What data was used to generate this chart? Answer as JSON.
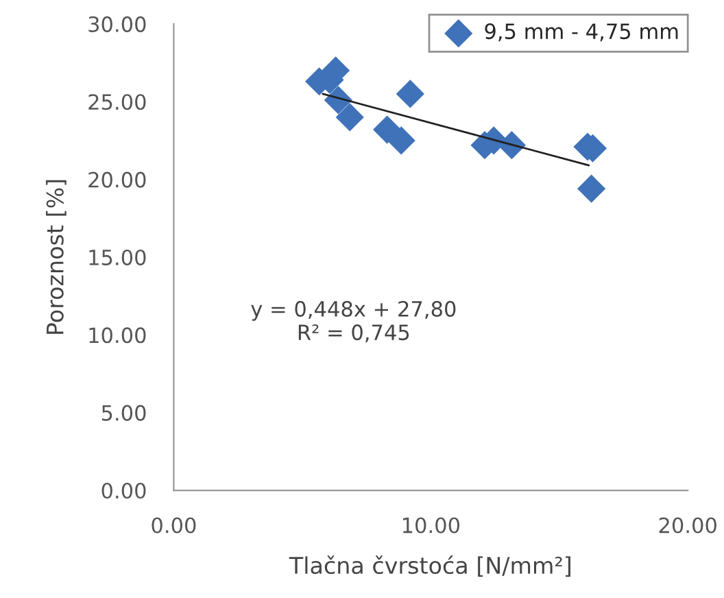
{
  "chart_data": {
    "type": "scatter",
    "xlabel": "Tlačna čvrstoća [N/mm²]",
    "ylabel": "Poroznost [%]",
    "series": [
      {
        "name": "9,5 mm - 4,75 mm",
        "color": "#3f72b8",
        "marker": "diamond",
        "x": [
          5.66,
          6.07,
          6.3,
          6.4,
          6.85,
          8.3,
          8.85,
          9.2,
          12.1,
          12.45,
          13.15,
          16.1,
          16.3,
          16.25
        ],
        "values": [
          26.3,
          26.4,
          27.0,
          25.1,
          24.0,
          23.2,
          22.5,
          25.5,
          22.2,
          22.5,
          22.2,
          22.1,
          22.0,
          19.4
        ]
      },
      {
        "type": "line",
        "color": "#222222",
        "marker": "none",
        "x": [
          5.8,
          16.15
        ],
        "values": [
          25.5,
          20.9
        ]
      }
    ],
    "xlim": [
      0,
      20
    ],
    "xticks": [
      {
        "value": 0,
        "label": "0.00"
      },
      {
        "value": 10,
        "label": "10.00"
      },
      {
        "value": 20,
        "label": "20.00"
      }
    ],
    "ylim": [
      0,
      30
    ],
    "yticks": [
      {
        "value": 0,
        "label": "0.00"
      },
      {
        "value": 5,
        "label": "5.00"
      },
      {
        "value": 10,
        "label": "10.00"
      },
      {
        "value": 15,
        "label": "15.00"
      },
      {
        "value": 20,
        "label": "20.00"
      },
      {
        "value": 25,
        "label": "25.00"
      },
      {
        "value": 30,
        "label": "30.00"
      }
    ],
    "annotations": [
      "y = 0,448x + 27,80\nR² = 0,745"
    ],
    "grid": false,
    "legend": "top right"
  }
}
